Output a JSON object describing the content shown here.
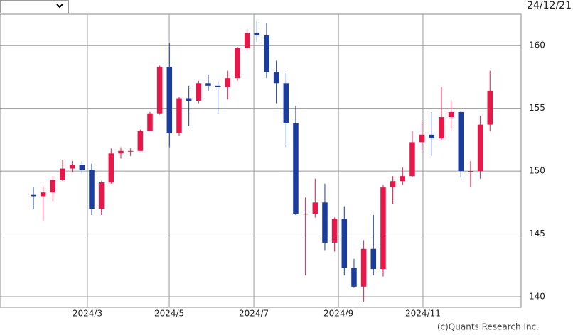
{
  "chart_data": {
    "type": "candlestick",
    "date": "24/12/21",
    "credit": "(c)Quants Research Inc.",
    "up_color": "#e8174a",
    "down_color": "#1a3c9c",
    "open": [
      148.1,
      148.0,
      148.3,
      149.3,
      150.2,
      150.5,
      150.1,
      147.0,
      149.1,
      151.4,
      151.6,
      151.6,
      153.2,
      154.6,
      158.3,
      153.0,
      155.8,
      155.6,
      157.0,
      156.8,
      156.7,
      157.4,
      159.8,
      161.0,
      160.8,
      157.9,
      157.0,
      153.8,
      146.6,
      146.6,
      147.5,
      144.3,
      146.2,
      142.3,
      140.8,
      143.8,
      142.2,
      148.7,
      149.2,
      149.6,
      152.3,
      152.9,
      152.6,
      154.3,
      154.7,
      150.0,
      150.0,
      153.7
    ],
    "high": [
      148.7,
      148.8,
      149.6,
      150.9,
      150.8,
      150.8,
      150.6,
      149.2,
      151.8,
      151.9,
      151.8,
      153.3,
      154.7,
      158.4,
      160.2,
      155.9,
      156.8,
      157.2,
      157.7,
      157.2,
      158.0,
      159.9,
      161.3,
      162.0,
      161.8,
      158.8,
      157.8,
      155.2,
      147.9,
      149.4,
      149.0,
      146.3,
      147.2,
      143.0,
      144.5,
      146.5,
      148.9,
      149.6,
      150.3,
      153.2,
      153.9,
      154.7,
      156.7,
      155.6,
      154.8,
      150.8,
      154.4,
      158.0
    ],
    "low": [
      147.0,
      146.0,
      147.6,
      149.2,
      149.9,
      149.8,
      146.5,
      146.5,
      149.0,
      151.0,
      151.2,
      151.6,
      153.2,
      154.5,
      151.9,
      152.8,
      153.6,
      155.4,
      156.4,
      154.6,
      155.7,
      157.2,
      159.6,
      160.3,
      157.4,
      155.4,
      151.9,
      146.5,
      141.7,
      146.3,
      143.7,
      143.6,
      141.7,
      140.7,
      139.6,
      141.7,
      141.6,
      147.4,
      148.9,
      149.5,
      151.6,
      151.2,
      152.5,
      153.3,
      149.5,
      148.7,
      149.4,
      153.2
    ],
    "close": [
      148.0,
      148.3,
      149.3,
      150.2,
      150.5,
      150.1,
      147.0,
      149.1,
      151.4,
      151.6,
      151.6,
      153.2,
      154.6,
      158.3,
      153.0,
      155.8,
      155.6,
      157.0,
      156.8,
      156.7,
      157.4,
      159.8,
      161.0,
      160.8,
      157.9,
      157.0,
      153.8,
      146.6,
      146.6,
      147.5,
      144.3,
      146.2,
      142.3,
      140.8,
      143.8,
      142.2,
      148.7,
      149.2,
      149.6,
      152.3,
      152.9,
      152.6,
      154.3,
      154.7,
      150.0,
      150.0,
      153.7,
      156.4
    ],
    "xlim": [
      -3.44,
      50.2
    ],
    "xticks": [
      {
        "value": 5.56,
        "label": "2024/3"
      },
      {
        "value": 13.98,
        "label": "2024/5"
      },
      {
        "value": 22.69,
        "label": "2024/7"
      },
      {
        "value": 31.4,
        "label": "2024/9"
      },
      {
        "value": 40.1,
        "label": "2024/11"
      }
    ],
    "ylim": [
      139.15,
      162.5
    ],
    "yticks": [
      140,
      145,
      150,
      155,
      160
    ],
    "grid": true
  }
}
